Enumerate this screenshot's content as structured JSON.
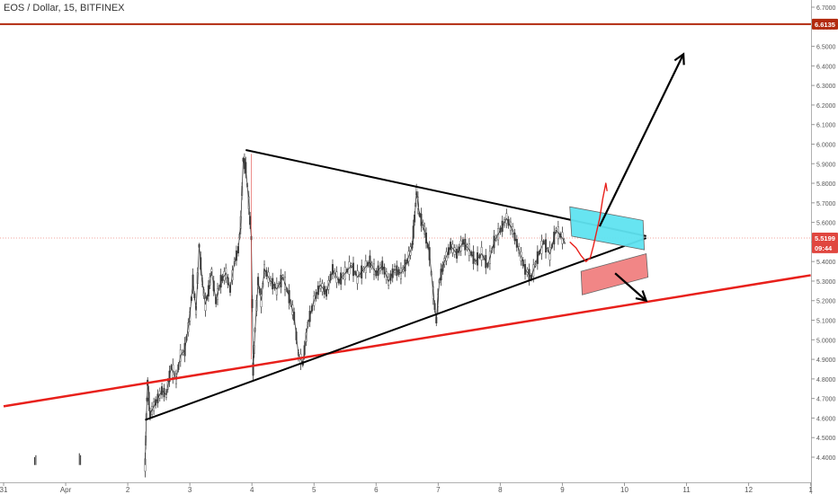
{
  "chart_data": {
    "type": "line",
    "title": "EOS / Dollar, 15, BITFINEX",
    "xlabel": "",
    "ylabel": "",
    "x_ticks": [
      "31",
      "Apr",
      "2",
      "3",
      "4",
      "5",
      "6",
      "7",
      "8",
      "9",
      "10",
      "11",
      "12",
      "1"
    ],
    "y_ticks": [
      "6.7000",
      "6.6000",
      "6.5000",
      "6.4000",
      "6.3000",
      "6.2000",
      "6.1000",
      "6.0000",
      "5.9000",
      "5.8000",
      "5.7000",
      "5.6000",
      "5.5000",
      "5.4000",
      "5.3000",
      "5.2000",
      "5.1000",
      "5.0000",
      "4.9000",
      "4.8000",
      "4.7000",
      "4.6000",
      "4.5000",
      "4.4000"
    ],
    "ylim": [
      4.35,
      6.75
    ],
    "xlim": [
      0,
      13
    ],
    "price_labels": {
      "resistance": {
        "text": "6.6135",
        "value": 6.6135,
        "color": "#b22a0e"
      },
      "current": {
        "text": "5.5199",
        "value": 5.5199,
        "color": "#e0463f"
      },
      "countdown": {
        "text": "09:44",
        "value": 5.47,
        "color": "#e0463f"
      }
    },
    "series": [
      {
        "values": [
          [
            2.28,
            4.36
          ],
          [
            2.3,
            4.61
          ],
          [
            2.32,
            4.78
          ],
          [
            2.36,
            4.62
          ],
          [
            2.45,
            4.68
          ],
          [
            2.55,
            4.74
          ],
          [
            2.62,
            4.72
          ],
          [
            2.7,
            4.86
          ],
          [
            2.78,
            4.8
          ],
          [
            2.85,
            4.92
          ],
          [
            2.92,
            4.95
          ],
          [
            3.0,
            5.12
          ],
          [
            3.05,
            5.3
          ],
          [
            3.1,
            5.15
          ],
          [
            3.15,
            5.48
          ],
          [
            3.2,
            5.3
          ],
          [
            3.25,
            5.18
          ],
          [
            3.3,
            5.25
          ],
          [
            3.35,
            5.35
          ],
          [
            3.42,
            5.2
          ],
          [
            3.5,
            5.3
          ],
          [
            3.58,
            5.34
          ],
          [
            3.65,
            5.26
          ],
          [
            3.72,
            5.4
          ],
          [
            3.78,
            5.46
          ],
          [
            3.82,
            5.6
          ],
          [
            3.86,
            5.92
          ],
          [
            3.9,
            5.88
          ],
          [
            3.95,
            5.7
          ],
          [
            3.99,
            5.52
          ],
          [
            4.02,
            4.85
          ],
          [
            4.05,
            5.05
          ],
          [
            4.1,
            5.3
          ],
          [
            4.15,
            5.2
          ],
          [
            4.2,
            5.36
          ],
          [
            4.3,
            5.3
          ],
          [
            4.4,
            5.26
          ],
          [
            4.5,
            5.32
          ],
          [
            4.6,
            5.22
          ],
          [
            4.68,
            5.12
          ],
          [
            4.75,
            4.92
          ],
          [
            4.82,
            4.88
          ],
          [
            4.9,
            5.08
          ],
          [
            5.0,
            5.2
          ],
          [
            5.1,
            5.28
          ],
          [
            5.2,
            5.24
          ],
          [
            5.3,
            5.36
          ],
          [
            5.4,
            5.3
          ],
          [
            5.5,
            5.34
          ],
          [
            5.6,
            5.38
          ],
          [
            5.7,
            5.32
          ],
          [
            5.8,
            5.36
          ],
          [
            5.9,
            5.4
          ],
          [
            6.0,
            5.34
          ],
          [
            6.1,
            5.38
          ],
          [
            6.2,
            5.3
          ],
          [
            6.3,
            5.36
          ],
          [
            6.4,
            5.34
          ],
          [
            6.5,
            5.4
          ],
          [
            6.58,
            5.48
          ],
          [
            6.62,
            5.62
          ],
          [
            6.65,
            5.76
          ],
          [
            6.7,
            5.64
          ],
          [
            6.78,
            5.56
          ],
          [
            6.86,
            5.44
          ],
          [
            6.92,
            5.24
          ],
          [
            6.97,
            5.1
          ],
          [
            7.02,
            5.3
          ],
          [
            7.1,
            5.4
          ],
          [
            7.2,
            5.48
          ],
          [
            7.3,
            5.44
          ],
          [
            7.4,
            5.5
          ],
          [
            7.5,
            5.46
          ],
          [
            7.6,
            5.4
          ],
          [
            7.7,
            5.44
          ],
          [
            7.8,
            5.38
          ],
          [
            7.9,
            5.5
          ],
          [
            8.0,
            5.56
          ],
          [
            8.1,
            5.62
          ],
          [
            8.2,
            5.56
          ],
          [
            8.3,
            5.46
          ],
          [
            8.4,
            5.36
          ],
          [
            8.5,
            5.32
          ],
          [
            8.6,
            5.42
          ],
          [
            8.7,
            5.5
          ],
          [
            8.8,
            5.44
          ],
          [
            8.9,
            5.56
          ],
          [
            9.0,
            5.52
          ],
          [
            9.05,
            5.49
          ]
        ]
      }
    ],
    "trendlines": {
      "upper_triangle": [
        [
          3.9,
          5.97
        ],
        [
          10.35,
          5.53
        ]
      ],
      "lower_triangle": [
        [
          2.28,
          4.59
        ],
        [
          10.35,
          5.52
        ]
      ],
      "support": [
        [
          0.0,
          4.66
        ],
        [
          13.0,
          5.33
        ]
      ],
      "resistance_level": 6.6135,
      "current_price_level": 5.5199
    },
    "annotations": {
      "upside_arrow": {
        "from": [
          9.6,
          5.58
        ],
        "to": [
          10.95,
          6.46
        ]
      },
      "downside_arrow": {
        "from": [
          9.85,
          5.34
        ],
        "to": [
          10.35,
          5.2
        ]
      },
      "buy_zone": {
        "corners": [
          [
            9.12,
            5.68
          ],
          [
            10.3,
            5.61
          ],
          [
            10.32,
            5.46
          ],
          [
            9.15,
            5.53
          ]
        ],
        "color": "#5fe3f0"
      },
      "sell_zone": {
        "corners": [
          [
            9.3,
            5.35
          ],
          [
            10.35,
            5.44
          ],
          [
            10.38,
            5.32
          ],
          [
            9.32,
            5.23
          ]
        ],
        "color": "#f08080"
      },
      "projected_path": [
        [
          9.12,
          5.5
        ],
        [
          9.22,
          5.47
        ],
        [
          9.3,
          5.43
        ],
        [
          9.38,
          5.4
        ],
        [
          9.45,
          5.42
        ],
        [
          9.5,
          5.48
        ],
        [
          9.55,
          5.55
        ],
        [
          9.6,
          5.62
        ],
        [
          9.65,
          5.72
        ],
        [
          9.7,
          5.8
        ],
        [
          9.72,
          5.76
        ]
      ]
    }
  }
}
